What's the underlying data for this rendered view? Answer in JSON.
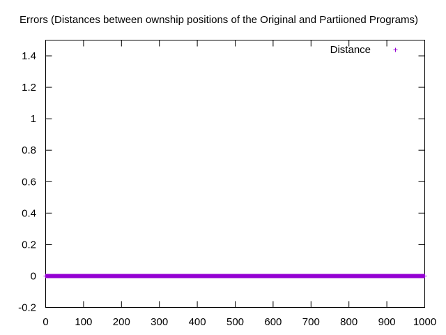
{
  "chart_data": {
    "type": "scatter",
    "title": "Errors  (Distances between ownship positions of the Original and Partiioned Programs)",
    "xlabel": "",
    "ylabel": "",
    "xlim": [
      0,
      1000
    ],
    "ylim": [
      -0.2,
      1.5
    ],
    "xticks": [
      "0",
      "100",
      "200",
      "300",
      "400",
      "500",
      "600",
      "700",
      "800",
      "900",
      "1000"
    ],
    "yticks": [
      "-0.2",
      "0",
      "0.2",
      "0.4",
      "0.6",
      "0.8",
      "1",
      "1.2",
      "1.4"
    ],
    "grid": false,
    "legend_position": "top-right",
    "series": [
      {
        "name": "Distance",
        "color": "#9400d3",
        "marker": "plus",
        "x_range": [
          0,
          1000
        ],
        "x_step": 1,
        "y_constant": 0
      }
    ]
  }
}
